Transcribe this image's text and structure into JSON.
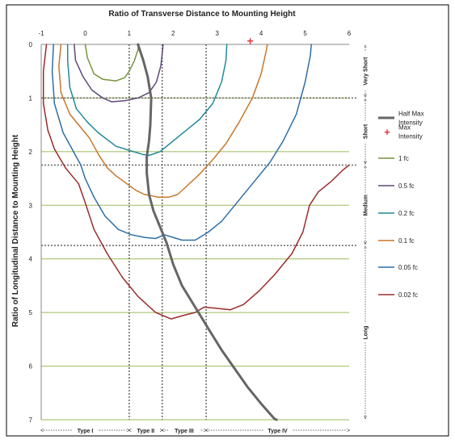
{
  "chart_data": {
    "type": "line",
    "title": "Ratio of Transverse Distance to Mounting Height",
    "ylabel": "Ratio of Longitudinal Distance to Mounting Height",
    "xlim": [
      -1,
      6
    ],
    "ylim": [
      0,
      7
    ],
    "y_inverted": true,
    "x_ticks": [
      "-1",
      "0",
      "1",
      "2",
      "3",
      "4",
      "5",
      "6"
    ],
    "y_ticks": [
      "0",
      "1",
      "2",
      "3",
      "4",
      "5",
      "6",
      "7"
    ],
    "grid": "horizontal",
    "legend_position": "right",
    "series": [
      {
        "name": "1 fc",
        "color": "#77933c",
        "points": [
          [
            0.0,
            0
          ],
          [
            0.05,
            0.25
          ],
          [
            0.2,
            0.55
          ],
          [
            0.4,
            0.65
          ],
          [
            0.7,
            0.68
          ],
          [
            0.9,
            0.62
          ],
          [
            1.0,
            0.5
          ],
          [
            1.12,
            0.3
          ],
          [
            1.2,
            0.1
          ],
          [
            1.22,
            0
          ]
        ]
      },
      {
        "name": "0.5 fc",
        "color": "#5f497a",
        "points": [
          [
            -0.25,
            0
          ],
          [
            -0.22,
            0.3
          ],
          [
            -0.05,
            0.6
          ],
          [
            0.15,
            0.85
          ],
          [
            0.4,
            1.0
          ],
          [
            0.6,
            1.07
          ],
          [
            0.9,
            1.05
          ],
          [
            1.2,
            1.0
          ],
          [
            1.45,
            0.9
          ],
          [
            1.62,
            0.7
          ],
          [
            1.72,
            0.4
          ],
          [
            1.76,
            0.1
          ],
          [
            1.77,
            0
          ]
        ]
      },
      {
        "name": "0.2 fc",
        "color": "#1f8a9a",
        "points": [
          [
            -0.4,
            0
          ],
          [
            -0.4,
            0.3
          ],
          [
            -0.35,
            0.8
          ],
          [
            -0.2,
            1.2
          ],
          [
            0.05,
            1.45
          ],
          [
            0.3,
            1.65
          ],
          [
            0.7,
            1.9
          ],
          [
            1.1,
            2.0
          ],
          [
            1.3,
            2.05
          ],
          [
            1.45,
            2.07
          ],
          [
            1.7,
            2.0
          ],
          [
            2.0,
            1.8
          ],
          [
            2.3,
            1.6
          ],
          [
            2.6,
            1.4
          ],
          [
            2.9,
            1.1
          ],
          [
            3.1,
            0.7
          ],
          [
            3.2,
            0.3
          ],
          [
            3.22,
            0
          ]
        ]
      },
      {
        "name": "0.1 fc",
        "color": "#c8762a",
        "points": [
          [
            -0.55,
            0
          ],
          [
            -0.6,
            0.4
          ],
          [
            -0.55,
            0.9
          ],
          [
            -0.35,
            1.3
          ],
          [
            -0.1,
            1.55
          ],
          [
            0.1,
            1.75
          ],
          [
            0.3,
            2.05
          ],
          [
            0.5,
            2.3
          ],
          [
            0.7,
            2.45
          ],
          [
            0.95,
            2.6
          ],
          [
            1.15,
            2.72
          ],
          [
            1.35,
            2.8
          ],
          [
            1.5,
            2.82
          ],
          [
            1.65,
            2.85
          ],
          [
            1.9,
            2.85
          ],
          [
            2.1,
            2.8
          ],
          [
            2.3,
            2.65
          ],
          [
            2.6,
            2.42
          ],
          [
            2.9,
            2.15
          ],
          [
            3.2,
            1.85
          ],
          [
            3.5,
            1.45
          ],
          [
            3.8,
            1.0
          ],
          [
            4.0,
            0.55
          ],
          [
            4.12,
            0.1
          ],
          [
            4.14,
            0
          ]
        ]
      },
      {
        "name": "0.05 fc",
        "color": "#2e6fa7",
        "points": [
          [
            -0.72,
            0
          ],
          [
            -0.75,
            0.5
          ],
          [
            -0.7,
            1.1
          ],
          [
            -0.5,
            1.65
          ],
          [
            -0.3,
            1.95
          ],
          [
            -0.1,
            2.25
          ],
          [
            0.0,
            2.5
          ],
          [
            0.2,
            2.85
          ],
          [
            0.45,
            3.2
          ],
          [
            0.75,
            3.45
          ],
          [
            1.05,
            3.55
          ],
          [
            1.35,
            3.6
          ],
          [
            1.6,
            3.62
          ],
          [
            1.8,
            3.55
          ],
          [
            2.0,
            3.6
          ],
          [
            2.2,
            3.65
          ],
          [
            2.5,
            3.65
          ],
          [
            2.8,
            3.5
          ],
          [
            3.1,
            3.3
          ],
          [
            3.4,
            3.0
          ],
          [
            3.8,
            2.6
          ],
          [
            4.2,
            2.2
          ],
          [
            4.5,
            1.8
          ],
          [
            4.8,
            1.3
          ],
          [
            5.0,
            0.7
          ],
          [
            5.12,
            0.2
          ],
          [
            5.14,
            0
          ]
        ]
      },
      {
        "name": "0.02 fc",
        "color": "#9b2b2b",
        "points": [
          [
            -0.88,
            0
          ],
          [
            -0.95,
            0.5
          ],
          [
            -0.95,
            1.1
          ],
          [
            -0.85,
            1.6
          ],
          [
            -0.7,
            1.95
          ],
          [
            -0.45,
            2.3
          ],
          [
            -0.15,
            2.6
          ],
          [
            0.0,
            2.95
          ],
          [
            0.2,
            3.45
          ],
          [
            0.5,
            3.9
          ],
          [
            0.85,
            4.35
          ],
          [
            1.2,
            4.7
          ],
          [
            1.6,
            5.0
          ],
          [
            1.95,
            5.12
          ],
          [
            2.25,
            5.05
          ],
          [
            2.5,
            5.0
          ],
          [
            2.7,
            4.9
          ],
          [
            2.95,
            4.92
          ],
          [
            3.3,
            4.95
          ],
          [
            3.6,
            4.85
          ],
          [
            3.95,
            4.6
          ],
          [
            4.3,
            4.3
          ],
          [
            4.7,
            3.9
          ],
          [
            4.95,
            3.5
          ],
          [
            5.1,
            3.0
          ],
          [
            5.3,
            2.75
          ],
          [
            5.6,
            2.55
          ],
          [
            5.85,
            2.35
          ],
          [
            6.0,
            2.25
          ]
        ]
      },
      {
        "name": "Half Max Intensity",
        "color": "#666666",
        "width": 3,
        "points": [
          [
            1.2,
            0
          ],
          [
            1.32,
            0.3
          ],
          [
            1.42,
            0.6
          ],
          [
            1.5,
            1.0
          ],
          [
            1.48,
            1.5
          ],
          [
            1.45,
            1.8
          ],
          [
            1.4,
            2.1
          ],
          [
            1.4,
            2.4
          ],
          [
            1.45,
            2.8
          ],
          [
            1.55,
            3.1
          ],
          [
            1.7,
            3.4
          ],
          [
            1.85,
            3.7
          ],
          [
            2.0,
            4.1
          ],
          [
            2.2,
            4.5
          ],
          [
            2.5,
            4.9
          ],
          [
            2.8,
            5.3
          ],
          [
            3.1,
            5.7
          ],
          [
            3.4,
            6.05
          ],
          [
            3.7,
            6.4
          ],
          [
            4.0,
            6.7
          ],
          [
            4.3,
            6.98
          ],
          [
            4.35,
            7.0
          ]
        ]
      }
    ],
    "markers": [
      {
        "name": "Max Intensity",
        "x": 3.75,
        "y": -0.05,
        "symbol": "+",
        "color": "#e8323c"
      }
    ],
    "reference_lines": {
      "vertical": [
        1.0,
        1.75,
        2.75
      ],
      "horizontal": [
        1.0,
        2.25,
        3.75
      ]
    },
    "type_bands": [
      {
        "label": "Type I",
        "from": -1,
        "to": 1.0
      },
      {
        "label": "Type II",
        "from": 1.0,
        "to": 1.75
      },
      {
        "label": "Type III",
        "from": 1.75,
        "to": 2.75
      },
      {
        "label": "Type IV",
        "from": 2.75,
        "to": 6
      }
    ],
    "range_bands": [
      {
        "label": "Very Short",
        "from": 0,
        "to": 1.0
      },
      {
        "label": "Short",
        "from": 1.0,
        "to": 2.25
      },
      {
        "label": "Medium",
        "from": 2.25,
        "to": 3.75
      },
      {
        "label": "Long",
        "from": 3.75,
        "to": 7
      }
    ],
    "legend_entries": [
      {
        "label_lines": [
          "Half Max",
          "Intensity"
        ],
        "color": "#666666",
        "symbol": "line",
        "width": 3
      },
      {
        "label_lines": [
          "Max",
          "Intensity"
        ],
        "color": "#e8323c",
        "symbol": "plus"
      },
      {
        "label_lines": [
          "1 fc"
        ],
        "color": "#77933c",
        "symbol": "line"
      },
      {
        "label_lines": [
          "0.5 fc"
        ],
        "color": "#5f497a",
        "symbol": "line"
      },
      {
        "label_lines": [
          "0.2 fc"
        ],
        "color": "#1f8a9a",
        "symbol": "line"
      },
      {
        "label_lines": [
          "0.1 fc"
        ],
        "color": "#c8762a",
        "symbol": "line"
      },
      {
        "label_lines": [
          "0.05 fc"
        ],
        "color": "#2e6fa7",
        "symbol": "line"
      },
      {
        "label_lines": [
          "0.02 fc"
        ],
        "color": "#9b2b2b",
        "symbol": "line"
      }
    ]
  }
}
